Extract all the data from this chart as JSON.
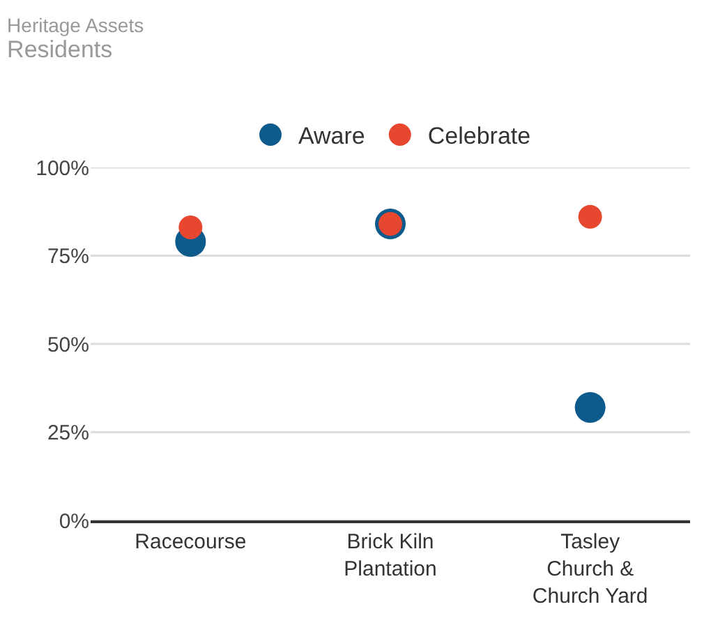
{
  "chart_data": {
    "type": "scatter",
    "title": "Heritage Assets",
    "subtitle": "Residents",
    "categories": [
      "Racecourse",
      "Brick Kiln\nPlantation",
      "Tasley\nChurch &\nChurch Yard"
    ],
    "series": [
      {
        "name": "Aware",
        "color": "#0d5a8c",
        "values": [
          79,
          84,
          32
        ]
      },
      {
        "name": "Celebrate",
        "color": "#e8472f",
        "values": [
          83,
          84,
          86
        ]
      }
    ],
    "ylim": [
      0,
      100
    ],
    "yticks": [
      {
        "value": 0,
        "label": "0%"
      },
      {
        "value": 25,
        "label": "25%"
      },
      {
        "value": 50,
        "label": "50%"
      },
      {
        "value": 75,
        "label": "75%"
      },
      {
        "value": 100,
        "label": "100%"
      }
    ],
    "grid": "y",
    "legend": "top"
  }
}
